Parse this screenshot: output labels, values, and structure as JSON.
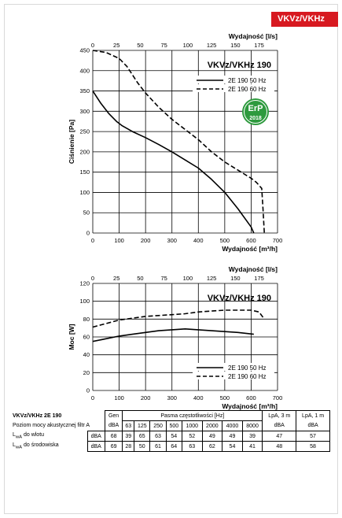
{
  "header": {
    "tag": "VKVz/VKHz"
  },
  "chart_data": [
    {
      "type": "line",
      "title": "VKVz/VKHz 190",
      "xlabel": "Wydajność [m³/h]",
      "x2label": "Wydajność [l/s]",
      "ylabel": "Ciśnienie [Pa]",
      "xlim": [
        0,
        700
      ],
      "x2lim": [
        0,
        194.4
      ],
      "ylim": [
        0,
        450
      ],
      "xticks": [
        "0",
        "100",
        "200",
        "300",
        "400",
        "500",
        "600",
        "700"
      ],
      "x2ticks": [
        "0",
        "25",
        "50",
        "75",
        "100",
        "125",
        "150",
        "175"
      ],
      "yticks": [
        "0",
        "50",
        "100",
        "150",
        "200",
        "250",
        "300",
        "350",
        "400",
        "450"
      ],
      "grid": true,
      "legend": "top-right",
      "series": [
        {
          "name": "2E 190 50 Hz",
          "style": "solid",
          "x": [
            0,
            30,
            60,
            90,
            110,
            150,
            200,
            250,
            300,
            350,
            400,
            450,
            500,
            550,
            600,
            610
          ],
          "y": [
            350,
            320,
            295,
            275,
            265,
            250,
            235,
            218,
            200,
            180,
            160,
            132,
            100,
            60,
            15,
            0
          ]
        },
        {
          "name": "2E 190 60 Hz",
          "style": "dashed",
          "x": [
            0,
            50,
            100,
            130,
            170,
            200,
            250,
            300,
            350,
            400,
            450,
            500,
            550,
            600,
            620,
            640,
            645,
            650
          ],
          "y": [
            450,
            445,
            430,
            410,
            370,
            345,
            310,
            280,
            255,
            230,
            200,
            175,
            155,
            135,
            125,
            110,
            60,
            0
          ]
        }
      ],
      "badge": {
        "text": "ErP",
        "year": "2018",
        "color": "#2e9a3e"
      }
    },
    {
      "type": "line",
      "title": "VKVz/VKHz 190",
      "xlabel": "Wydajność [m³/h]",
      "x2label": "Wydajność [l/s]",
      "ylabel": "Moc [W]",
      "xlim": [
        0,
        700
      ],
      "x2lim": [
        0,
        194.4
      ],
      "ylim": [
        0,
        120
      ],
      "xticks": [
        "0",
        "100",
        "200",
        "300",
        "400",
        "500",
        "600",
        "700"
      ],
      "x2ticks": [
        "0",
        "25",
        "50",
        "75",
        "100",
        "125",
        "150",
        "175"
      ],
      "yticks": [
        "0",
        "20",
        "40",
        "60",
        "80",
        "100",
        "120"
      ],
      "grid": true,
      "legend": "bottom-right",
      "series": [
        {
          "name": "2E 190 50 Hz",
          "style": "solid",
          "x": [
            0,
            50,
            100,
            150,
            200,
            250,
            300,
            350,
            400,
            450,
            500,
            550,
            610
          ],
          "y": [
            55,
            58,
            61,
            63,
            65,
            67,
            68,
            69,
            68,
            67,
            66,
            65,
            63
          ]
        },
        {
          "name": "2E 190 60 Hz",
          "style": "dashed",
          "x": [
            0,
            50,
            100,
            150,
            200,
            250,
            300,
            350,
            400,
            450,
            500,
            550,
            600,
            630,
            650
          ],
          "y": [
            71,
            75,
            79,
            81,
            83,
            84,
            85,
            86,
            88,
            89,
            90,
            90,
            90,
            88,
            80
          ]
        }
      ]
    }
  ],
  "table": {
    "title_line1": "VKVz/VKHz 2E 190",
    "title_line2": "Poziom mocy akustycznej filtr A",
    "gen_label": "Gen",
    "bands_label": "Pasma częstotliwości [Hz]",
    "lpa3_label": "LpA, 3 m",
    "lpa1_label": "LpA, 1 m",
    "unit": "dBA",
    "bands": [
      "63",
      "125",
      "250",
      "500",
      "1000",
      "2000",
      "4000",
      "8000"
    ],
    "rows": [
      {
        "label_main": "L",
        "label_sub": "wA",
        "label_rest": " do wlotu",
        "unit": "dBA",
        "gen": "68",
        "values": [
          "39",
          "65",
          "63",
          "54",
          "52",
          "49",
          "49",
          "39"
        ],
        "lpa3": "47",
        "lpa1": "57"
      },
      {
        "label_main": "L",
        "label_sub": "wA",
        "label_rest": " do środowiska",
        "unit": "dBA",
        "gen": "69",
        "values": [
          "28",
          "50",
          "61",
          "64",
          "63",
          "62",
          "54",
          "41"
        ],
        "lpa3": "48",
        "lpa1": "58"
      }
    ]
  }
}
